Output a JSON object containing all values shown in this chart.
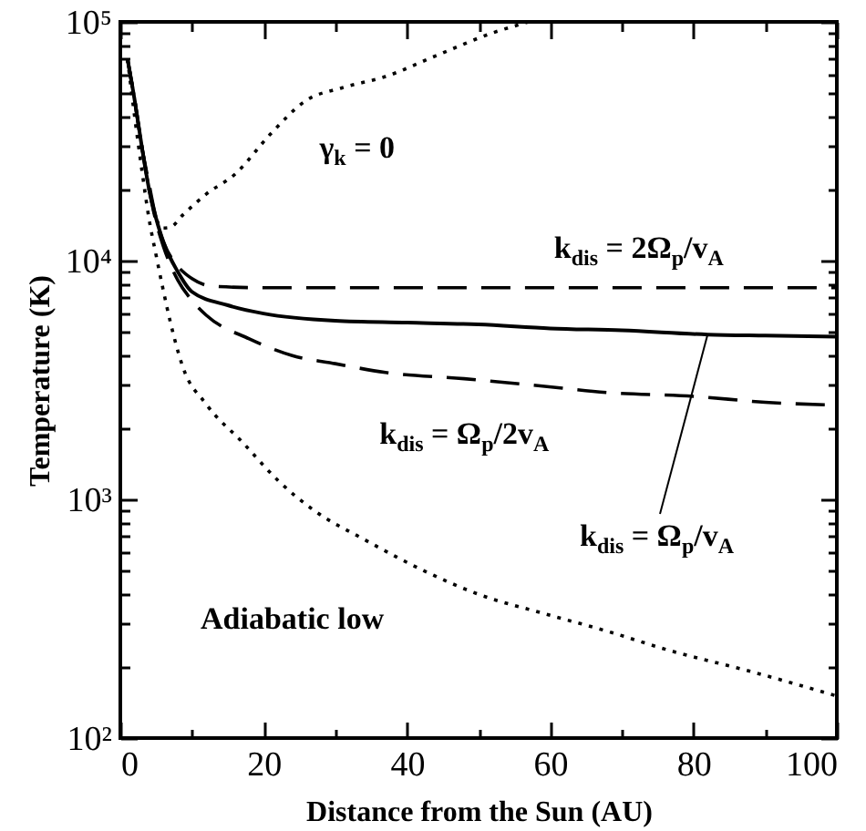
{
  "chart_data": {
    "type": "line",
    "xlabel": "Distance from the Sun (AU)",
    "ylabel": "Temperature (K)",
    "log": "y",
    "grid": false,
    "marker": "none",
    "xlim": [
      0,
      100
    ],
    "ylim": [
      100,
      100000
    ],
    "xticks": [
      0,
      {
        "value": 10,
        "label": null
      },
      20,
      {
        "value": 30,
        "label": null
      },
      40,
      {
        "value": 50,
        "label": null
      },
      60,
      {
        "value": 70,
        "label": null
      },
      80,
      {
        "value": 90,
        "label": null
      },
      100
    ],
    "yticks": [
      {
        "value": 100,
        "label": "10²"
      },
      {
        "value": 200,
        "label": null
      },
      {
        "value": 300,
        "label": null
      },
      {
        "value": 400,
        "label": null
      },
      {
        "value": 500,
        "label": null
      },
      {
        "value": 600,
        "label": null
      },
      {
        "value": 700,
        "label": null
      },
      {
        "value": 800,
        "label": null
      },
      {
        "value": 900,
        "label": null
      },
      {
        "value": 1000,
        "label": "10³"
      },
      {
        "value": 2000,
        "label": null
      },
      {
        "value": 3000,
        "label": null
      },
      {
        "value": 4000,
        "label": null
      },
      {
        "value": 5000,
        "label": null
      },
      {
        "value": 6000,
        "label": null
      },
      {
        "value": 7000,
        "label": null
      },
      {
        "value": 8000,
        "label": null
      },
      {
        "value": 9000,
        "label": null
      },
      {
        "value": 10000,
        "label": "10⁴"
      },
      {
        "value": 20000,
        "label": null
      },
      {
        "value": 30000,
        "label": null
      },
      {
        "value": 40000,
        "label": null
      },
      {
        "value": 50000,
        "label": null
      },
      {
        "value": 60000,
        "label": null
      },
      {
        "value": 70000,
        "label": null
      },
      {
        "value": 80000,
        "label": null
      },
      {
        "value": 90000,
        "label": null
      },
      {
        "value": 100000,
        "label": "10⁵"
      }
    ],
    "series": [
      {
        "name": "γ$_{k}$ = 0",
        "color": "#000000",
        "line_style": "dotted",
        "x": [
          1,
          2,
          3,
          4,
          5,
          6,
          7,
          8.7,
          12,
          16,
          21,
          26,
          31,
          37,
          44,
          52,
          57
        ],
        "values": [
          70000,
          47000,
          30000,
          20000,
          15000,
          13700,
          13800,
          15500,
          19000,
          23000,
          34000,
          47000,
          53000,
          59000,
          72000,
          90000,
          100000
        ]
      },
      {
        "name": "k$_{dis}$ = 2Ω$_{p}$/v$_{A}$",
        "color": "#000000",
        "line_style": "dashed",
        "x": [
          1,
          2,
          3,
          4,
          5,
          6,
          8,
          10,
          13,
          20,
          30,
          50,
          70,
          100
        ],
        "values": [
          70000,
          47000,
          30000,
          21000,
          15000,
          12000,
          9500,
          8400,
          7800,
          7700,
          7700,
          7700,
          7700,
          7700
        ]
      },
      {
        "name": "k$_{dis}$ = Ω$_{p}$/v$_{A}$",
        "color": "#000000",
        "line_style": "solid",
        "x": [
          1,
          2,
          3,
          4,
          5,
          6,
          8,
          10,
          15,
          20,
          30,
          40,
          50,
          60,
          70,
          82,
          90,
          100
        ],
        "values": [
          70000,
          47000,
          30000,
          20000,
          15000,
          12000,
          9000,
          7400,
          6500,
          6000,
          5600,
          5500,
          5400,
          5200,
          5100,
          4900,
          4850,
          4800
        ]
      },
      {
        "name": "k$_{dis}$ = Ω$_{p}$/2v$_{A}$",
        "color": "#000000",
        "line_style": "dashed",
        "x": [
          1,
          2,
          3,
          4,
          5,
          6,
          8,
          10,
          12,
          18,
          24,
          30,
          37,
          48,
          58,
          68,
          80,
          90,
          100
        ],
        "values": [
          70000,
          47000,
          30000,
          20000,
          14500,
          11500,
          8300,
          6800,
          5900,
          4700,
          4000,
          3700,
          3400,
          3200,
          3000,
          2800,
          2700,
          2550,
          2480
        ]
      },
      {
        "name": "Adiabatic low",
        "color": "#000000",
        "line_style": "dotted",
        "x": [
          1,
          2,
          3,
          4,
          5,
          6,
          7,
          8.7,
          12,
          17,
          22,
          27,
          34,
          42.5,
          50,
          59.5,
          68,
          76.6,
          88,
          100
        ],
        "values": [
          70000,
          40000,
          24000,
          15000,
          10500,
          7500,
          5500,
          3600,
          2500,
          1740,
          1200,
          900,
          680,
          500,
          400,
          330,
          280,
          233,
          190,
          150
        ]
      }
    ]
  }
}
